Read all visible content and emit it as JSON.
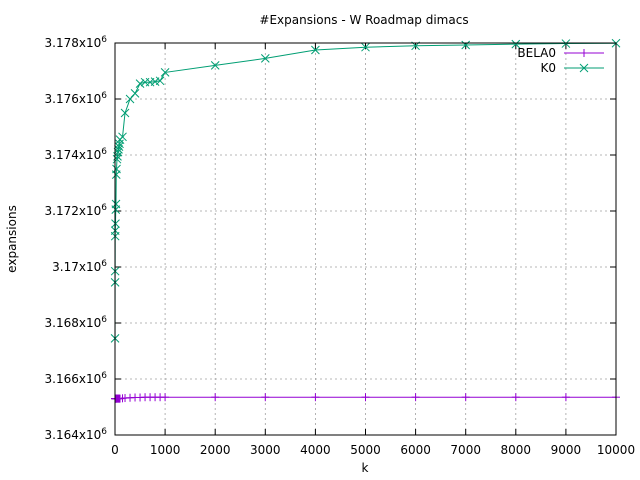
{
  "chart_data": {
    "type": "line",
    "title": "#Expansions - W Roadmap dimacs",
    "xlabel": "k",
    "ylabel": "expansions",
    "xlim": [
      0,
      10000
    ],
    "ylim": [
      3164000,
      3178000
    ],
    "grid": true,
    "legend_position": "top-right",
    "x_ticks": [
      {
        "value": 0,
        "label": "0"
      },
      {
        "value": 1000,
        "label": "1000"
      },
      {
        "value": 2000,
        "label": "2000"
      },
      {
        "value": 3000,
        "label": "3000"
      },
      {
        "value": 4000,
        "label": "4000"
      },
      {
        "value": 5000,
        "label": "5000"
      },
      {
        "value": 6000,
        "label": "6000"
      },
      {
        "value": 7000,
        "label": "7000"
      },
      {
        "value": 8000,
        "label": "8000"
      },
      {
        "value": 9000,
        "label": "9000"
      },
      {
        "value": 10000,
        "label": "10000"
      }
    ],
    "y_ticks": [
      {
        "value": 3164000,
        "mantissa": "3.164x10",
        "exp": "6"
      },
      {
        "value": 3166000,
        "mantissa": "3.166x10",
        "exp": "6"
      },
      {
        "value": 3168000,
        "mantissa": "3.168x10",
        "exp": "6"
      },
      {
        "value": 3170000,
        "mantissa": "3.17x10",
        "exp": "6"
      },
      {
        "value": 3172000,
        "mantissa": "3.172x10",
        "exp": "6"
      },
      {
        "value": 3174000,
        "mantissa": "3.174x10",
        "exp": "6"
      },
      {
        "value": 3176000,
        "mantissa": "3.176x10",
        "exp": "6"
      },
      {
        "value": 3178000,
        "mantissa": "3.178x10",
        "exp": "6"
      }
    ],
    "series": [
      {
        "name": "BELA0",
        "color": "#9400d3",
        "marker": "plus",
        "x": [
          1,
          2,
          3,
          4,
          5,
          10,
          15,
          20,
          25,
          30,
          40,
          50,
          60,
          70,
          80,
          90,
          100,
          150,
          200,
          300,
          400,
          500,
          600,
          700,
          800,
          900,
          1000,
          2000,
          3000,
          4000,
          5000,
          6000,
          7000,
          8000,
          9000,
          10000
        ],
        "y": [
          3165300,
          3165300,
          3165300,
          3165300,
          3165300,
          3165300,
          3165300,
          3165300,
          3165300,
          3165300,
          3165300,
          3165300,
          3165300,
          3165300,
          3165300,
          3165300,
          3165300,
          3165310,
          3165320,
          3165330,
          3165340,
          3165340,
          3165350,
          3165350,
          3165350,
          3165350,
          3165350,
          3165350,
          3165350,
          3165350,
          3165350,
          3165350,
          3165350,
          3165350,
          3165350,
          3165350
        ]
      },
      {
        "name": "K0",
        "color": "#009e73",
        "marker": "cross",
        "x": [
          1,
          2,
          3,
          4,
          5,
          10,
          15,
          20,
          25,
          30,
          40,
          50,
          60,
          70,
          80,
          90,
          100,
          150,
          200,
          300,
          400,
          500,
          600,
          700,
          800,
          900,
          1000,
          2000,
          3000,
          4000,
          5000,
          6000,
          7000,
          8000,
          9000,
          10000
        ],
        "y": [
          3167450,
          3169450,
          3169850,
          3171100,
          3171300,
          3171550,
          3172050,
          3172250,
          3173300,
          3173500,
          3173850,
          3173950,
          3174100,
          3174200,
          3174300,
          3174400,
          3174550,
          3174650,
          3175500,
          3176000,
          3176200,
          3176550,
          3176600,
          3176600,
          3176620,
          3176650,
          3176950,
          3177200,
          3177450,
          3177750,
          3177850,
          3177900,
          3177930,
          3177960,
          3177980,
          3177990
        ]
      }
    ]
  }
}
